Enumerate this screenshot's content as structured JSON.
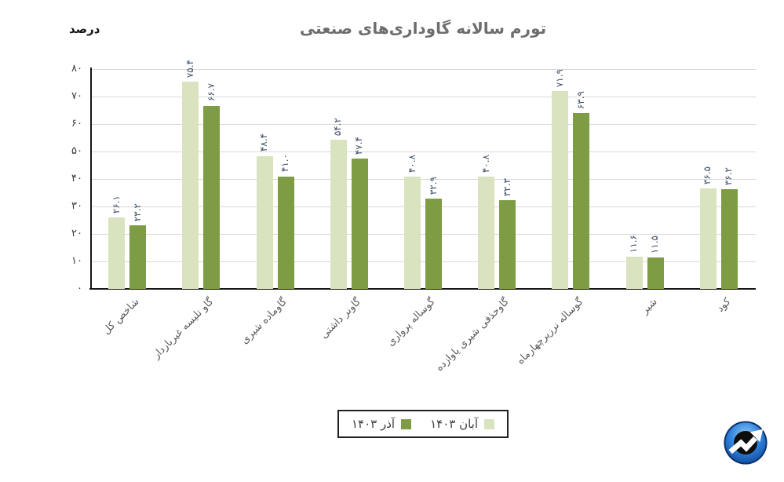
{
  "header": {
    "title": "تورم سالانه گاوداری‌های صنعتی",
    "unit_label": "درصد"
  },
  "chart_data": {
    "type": "bar",
    "title": "تورم سالانه گاوداری‌های صنعتی",
    "xlabel": "",
    "ylabel": "درصد",
    "ylim": [
      0,
      80
    ],
    "ytick_step": 10,
    "grid": true,
    "legend_position": "bottom",
    "yticks_fa": [
      "۸۰",
      "۷۰",
      "۶۰",
      "۵۰",
      "۴۰",
      "۳۰",
      "۲۰",
      "۱۰",
      "۰"
    ],
    "categories": [
      "شاخص کل",
      "گاو تلیسه غیرباردار",
      "گاوماده شیری",
      "گاونر داشتی",
      "گوساله پرواری",
      "گاوحذفی شیری یاوازده",
      "گوساله نرزیرچهارماه",
      "شیر",
      "کود"
    ],
    "series": [
      {
        "name": "آبان ۱۴۰۳",
        "color": "#d9e3c0",
        "values": [
          26.1,
          75.4,
          48.4,
          54.2,
          40.8,
          40.8,
          71.9,
          11.6,
          36.5
        ],
        "labels_fa": [
          "۲۶.۱",
          "۷۵.۴",
          "۴۸.۴",
          "۵۴.۲",
          "۴۰.۸",
          "۴۰.۸",
          "۷۱.۹",
          "۱۱.۶",
          "۳۶.۵"
        ]
      },
      {
        "name": "آذر ۱۴۰۳",
        "color": "#7d9c43",
        "values": [
          23.2,
          66.7,
          41.0,
          47.4,
          32.9,
          32.3,
          63.9,
          11.5,
          36.2
        ],
        "labels_fa": [
          "۲۳.۲",
          "۶۶.۷",
          "۴۱.۰",
          "۴۷.۴",
          "۳۲.۹",
          "۳۲.۳",
          "۶۳.۹",
          "۱۱.۵",
          "۳۶.۲"
        ]
      }
    ]
  },
  "legend": {
    "entries": [
      {
        "label": "آبان ۱۴۰۳",
        "color": "#d9e3c0"
      },
      {
        "label": "آذر ۱۴۰۳",
        "color": "#7d9c43"
      }
    ]
  },
  "colors": {
    "light_series": "#d9e3c0",
    "dark_series": "#7d9c43",
    "gridline": "#d9d9d9",
    "axis": "#161616",
    "value_label": "#44546a",
    "title": "#6d6d6d",
    "logo_blue": "#2e7fd9"
  },
  "logo": {
    "name": "trend-arrow-logo"
  }
}
